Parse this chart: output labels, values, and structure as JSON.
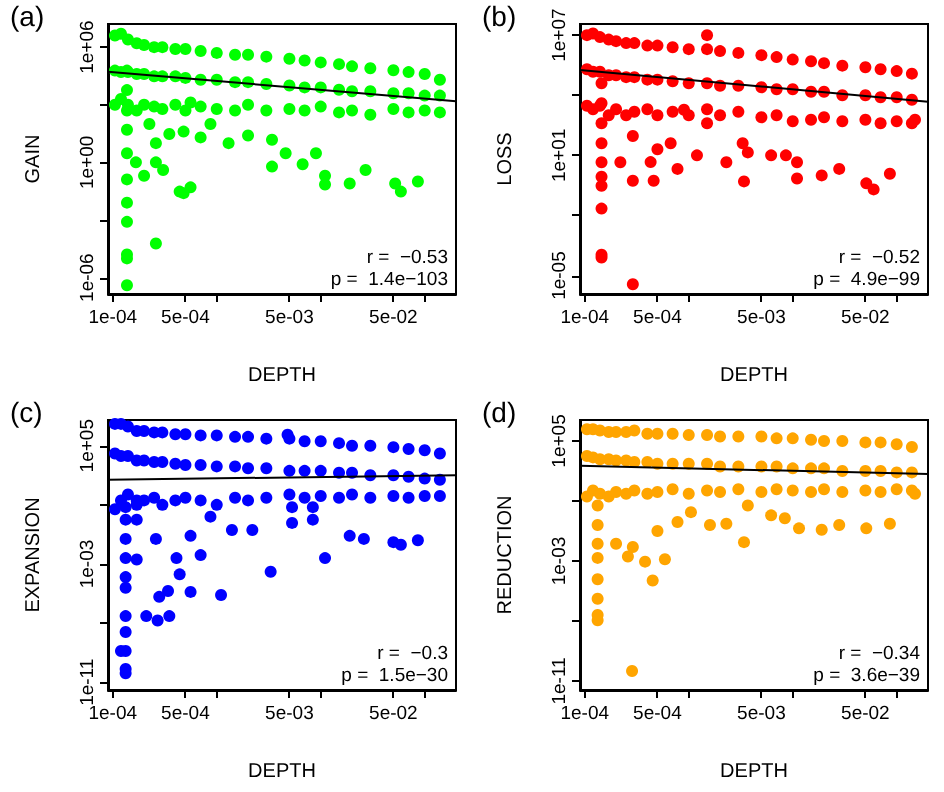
{
  "chart_data": [
    {
      "type": "scatter",
      "title": "(a)",
      "xlabel": "DEPTH",
      "ylabel": "GAIN",
      "log": "xy",
      "grid": false,
      "marker": "circle",
      "annotations": [
        "r =  −0.53",
        "p =  1.4e−103"
      ],
      "xlim": [
        9e-05,
        0.2
      ],
      "ylim": [
        1.4e-07,
        16000000.0
      ],
      "xticks": [
        {
          "value": 0.0001,
          "label": "1e-04"
        },
        {
          "value": 0.0005,
          "label": "5e-04"
        },
        {
          "value": 0.001,
          "label": null
        },
        {
          "value": 0.005,
          "label": "5e-03"
        },
        {
          "value": 0.01,
          "label": null
        },
        {
          "value": 0.05,
          "label": "5e-02"
        },
        {
          "value": 0.1,
          "label": null
        }
      ],
      "yticks": [
        {
          "value": 1e-06,
          "label": "1e-06"
        },
        {
          "value": 0.001,
          "label": null
        },
        {
          "value": 1,
          "label": "1e+00"
        },
        {
          "value": 1000,
          "label": null
        },
        {
          "value": 1000000.0,
          "label": "1e+06"
        }
      ],
      "series": [
        {
          "color": "#00ff00",
          "x": [
            0.000105,
            0.00012,
            0.00014,
            0.00017,
            0.0002,
            0.00025,
            0.0003,
            0.0004,
            0.0005,
            0.0007,
            0.001,
            0.0015,
            0.002,
            0.003,
            0.005,
            0.007,
            0.01,
            0.015,
            0.02,
            0.03,
            0.05,
            0.07,
            0.1,
            0.14,
            0.000105,
            0.00012,
            0.00014,
            0.00017,
            0.0002,
            0.00025,
            0.0003,
            0.0004,
            0.0005,
            0.0007,
            0.001,
            0.0015,
            0.002,
            0.003,
            0.005,
            0.007,
            0.01,
            0.015,
            0.02,
            0.03,
            0.05,
            0.07,
            0.1,
            0.14,
            0.000105,
            0.00012,
            0.00014,
            0.00017,
            0.0002,
            0.00025,
            0.0003,
            0.0004,
            0.0005,
            0.0007,
            0.001,
            0.0015,
            0.002,
            0.003,
            0.005,
            0.007,
            0.01,
            0.015,
            0.02,
            0.03,
            0.05,
            0.07,
            0.1,
            0.14,
            0.000137,
            0.000137,
            0.000137,
            0.000137,
            0.000137,
            0.000137,
            0.000137,
            0.000137,
            0.000137,
            0.000137,
            0.000137,
            0.00026,
            0.000225,
            0.00026,
            0.00035,
            0.00048,
            0.00056,
            0.0007,
            0.00087,
            0.0013,
            0.002,
            0.0034,
            0.0034,
            0.0046,
            0.0067,
            0.009,
            0.011,
            0.011,
            0.019,
            0.027,
            0.052,
            0.059,
            0.086,
            0.00044,
            0.00048,
            0.00056,
            0.0002,
            0.000167,
            0.00026,
            0.000305
          ],
          "values": [
            4000000.0,
            5000000.0,
            2500000.0,
            1600000.0,
            1300000.0,
            1000000.0,
            1000000.0,
            800000.0,
            800000.0,
            630000.0,
            500000.0,
            400000.0,
            400000.0,
            320000.0,
            250000.0,
            200000.0,
            160000.0,
            130000.0,
            100000.0,
            80000.0,
            63000.0,
            50000.0,
            40000.0,
            20000.0,
            60000.0,
            50000.0,
            50000.0,
            40000.0,
            40000.0,
            30000.0,
            30000.0,
            30000.0,
            25000.0,
            20000.0,
            20000.0,
            15000.0,
            15000.0,
            12000.0,
            10000.0,
            8000.0,
            8000.0,
            6000.0,
            5000.0,
            5000.0,
            4000.0,
            4000.0,
            3000.0,
            3000.0,
            1000.0,
            2000.0,
            1000.0,
            500.0,
            1000.0,
            800.0,
            600.0,
            1000.0,
            500.0,
            800.0,
            600.0,
            500.0,
            1000.0,
            500.0,
            600.0,
            500.0,
            800.0,
            400.0,
            500.0,
            300.0,
            600.0,
            400.0,
            500.0,
            400.0,
            60000.0,
            5800.0,
            500.0,
            50,
            3,
            0.13,
            0.008,
            0.0008,
            1.6e-05,
            1e-05,
            4e-07,
            6e-05,
            100.0,
            10,
            30,
            40,
            1300.0,
            20,
            100.0,
            10,
            25,
            15,
            0.6,
            3,
            0.8,
            3,
            0.2,
            0.07,
            0.08,
            0.4,
            0.08,
            0.03,
            0.1,
            0.03,
            0.025,
            0.05,
            0.2,
            1,
            1,
            0.4
          ]
        },
        {
          "type": "line",
          "color": "#000000",
          "marker": "none",
          "x": [
            9e-05,
            0.2
          ],
          "values": [
            52000.0,
            1500.0
          ]
        }
      ]
    },
    {
      "type": "scatter",
      "title": "(b)",
      "xlabel": "DEPTH",
      "ylabel": "LOSS",
      "log": "xy",
      "grid": false,
      "marker": "circle",
      "annotations": [
        "r =  −0.52",
        "p =  4.9e−99"
      ],
      "xlim": [
        9e-05,
        0.2
      ],
      "ylim": [
        1.2e-06,
        36000000.0
      ],
      "xticks": [
        {
          "value": 0.0001,
          "label": "1e-04"
        },
        {
          "value": 0.0005,
          "label": "5e-04"
        },
        {
          "value": 0.001,
          "label": null
        },
        {
          "value": 0.005,
          "label": "5e-03"
        },
        {
          "value": 0.01,
          "label": null
        },
        {
          "value": 0.05,
          "label": "5e-02"
        },
        {
          "value": 0.1,
          "label": null
        }
      ],
      "yticks": [
        {
          "value": 1e-05,
          "label": "1e-05"
        },
        {
          "value": 0.01,
          "label": null
        },
        {
          "value": 10,
          "label": "1e+01"
        },
        {
          "value": 10000,
          "label": null
        },
        {
          "value": 10000000.0,
          "label": "1e+07"
        }
      ],
      "series": [
        {
          "color": "#ff0000",
          "x": [
            0.000105,
            0.00012,
            0.00014,
            0.00017,
            0.0002,
            0.00025,
            0.0003,
            0.0004,
            0.0005,
            0.0007,
            0.001,
            0.0015,
            0.002,
            0.003,
            0.005,
            0.007,
            0.01,
            0.015,
            0.02,
            0.03,
            0.05,
            0.07,
            0.1,
            0.14,
            0.000105,
            0.00012,
            0.00014,
            0.00017,
            0.0002,
            0.00025,
            0.0003,
            0.0004,
            0.0005,
            0.0007,
            0.001,
            0.0015,
            0.002,
            0.003,
            0.005,
            0.007,
            0.01,
            0.015,
            0.02,
            0.03,
            0.05,
            0.07,
            0.1,
            0.14,
            0.000105,
            0.00012,
            0.00014,
            0.00017,
            0.0002,
            0.00025,
            0.0003,
            0.0004,
            0.0005,
            0.0007,
            0.001,
            0.0015,
            0.002,
            0.003,
            0.005,
            0.007,
            0.01,
            0.015,
            0.02,
            0.03,
            0.05,
            0.07,
            0.1,
            0.14,
            0.000145,
            0.000145,
            0.000145,
            0.000145,
            0.000145,
            0.000145,
            0.000145,
            0.000145,
            0.000145,
            0.000145,
            0.00029,
            0.00022,
            0.00029,
            0.00029,
            0.00043,
            0.00046,
            0.0005,
            0.00067,
            0.00078,
            0.0009,
            0.0012,
            0.0015,
            0.0015,
            0.0023,
            0.0033,
            0.0037,
            0.0034,
            0.0062,
            0.0086,
            0.011,
            0.011,
            0.019,
            0.028,
            0.051,
            0.06,
            0.086,
            0.15
          ],
          "values": [
            10000000.0,
            12000000.0,
            8000000.0,
            6000000.0,
            5000000.0,
            4000000.0,
            4000000.0,
            3000000.0,
            3000000.0,
            2500000.0,
            2000000.0,
            2000000.0,
            1600000.0,
            1300000.0,
            1000000.0,
            800000.0,
            600000.0,
            500000.0,
            400000.0,
            300000.0,
            250000.0,
            200000.0,
            160000.0,
            120000.0,
            200000.0,
            150000.0,
            150000.0,
            100000.0,
            100000.0,
            80000.0,
            80000.0,
            60000.0,
            60000.0,
            50000.0,
            40000.0,
            40000.0,
            30000.0,
            30000.0,
            25000.0,
            20000.0,
            20000.0,
            15000.0,
            15000.0,
            10000.0,
            10000.0,
            8000.0,
            8000.0,
            6000.0,
            3000.0,
            2000.0,
            3000.0,
            1000.0,
            2000.0,
            1000.0,
            1500.0,
            2000.0,
            1000.0,
            1500.0,
            1000.0,
            2000.0,
            1000.0,
            1500.0,
            800.0,
            1000.0,
            500.0,
            600.0,
            800.0,
            500.0,
            600.0,
            400.0,
            500.0,
            400.0,
            40000.0,
            4000.0,
            400.0,
            40,
            4.5,
            0.3,
            0.022,
            0.00011,
            8e-05,
            0.85,
            3.7e-06,
            4.5,
            93,
            0.54,
            4.6,
            0.54,
            20,
            40,
            2.1,
            1900.0,
            10,
            400.0,
            10000000.0,
            4.5,
            40,
            14,
            0.5,
            10,
            10,
            4.5,
            0.7,
            1,
            2.1,
            0.4,
            0.2,
            1.2,
            600.0
          ]
        },
        {
          "type": "line",
          "color": "#000000",
          "marker": "none",
          "x": [
            9e-05,
            0.2
          ],
          "values": [
            180000.0,
            4800.0
          ]
        }
      ]
    },
    {
      "type": "scatter",
      "title": "(c)",
      "xlabel": "DEPTH",
      "ylabel": "EXPANSION",
      "log": "xy",
      "grid": false,
      "marker": "circle",
      "annotations": [
        "r =  −0.3",
        "p =  1.5e−30"
      ],
      "xlim": [
        9e-05,
        0.2
      ],
      "ylim": [
        3e-12,
        5500000.0
      ],
      "xticks": [
        {
          "value": 0.0001,
          "label": "1e-04"
        },
        {
          "value": 0.0005,
          "label": "5e-04"
        },
        {
          "value": 0.001,
          "label": null
        },
        {
          "value": 0.005,
          "label": "5e-03"
        },
        {
          "value": 0.01,
          "label": null
        },
        {
          "value": 0.05,
          "label": "5e-02"
        },
        {
          "value": 0.1,
          "label": null
        }
      ],
      "yticks": [
        {
          "value": 1e-11,
          "label": "1e-11"
        },
        {
          "value": 1e-07,
          "label": null
        },
        {
          "value": 0.001,
          "label": "1e-03"
        },
        {
          "value": 10,
          "label": null
        },
        {
          "value": 100000.0,
          "label": "1e+05"
        }
      ],
      "series": [
        {
          "color": "#0000ff",
          "x": [
            0.000105,
            0.00012,
            0.00014,
            0.00017,
            0.0002,
            0.00025,
            0.0003,
            0.0004,
            0.0005,
            0.0007,
            0.001,
            0.0015,
            0.002,
            0.003,
            0.005,
            0.007,
            0.01,
            0.015,
            0.02,
            0.03,
            0.05,
            0.07,
            0.1,
            0.14,
            0.000105,
            0.00012,
            0.00014,
            0.00017,
            0.0002,
            0.00025,
            0.0003,
            0.0004,
            0.0005,
            0.0007,
            0.001,
            0.0015,
            0.002,
            0.003,
            0.005,
            0.007,
            0.01,
            0.015,
            0.02,
            0.03,
            0.05,
            0.07,
            0.1,
            0.14,
            0.000105,
            0.00012,
            0.00014,
            0.00017,
            0.0002,
            0.00025,
            0.0003,
            0.0004,
            0.0005,
            0.0007,
            0.001,
            0.0015,
            0.002,
            0.003,
            0.005,
            0.007,
            0.01,
            0.015,
            0.02,
            0.03,
            0.05,
            0.07,
            0.1,
            0.14,
            0.000133,
            0.000133,
            0.000133,
            0.000133,
            0.000133,
            0.000133,
            0.000133,
            0.000133,
            0.000133,
            0.000133,
            0.000133,
            0.00012,
            0.00017,
            0.00017,
            0.00017,
            0.00021,
            0.00027,
            0.00035,
            0.00026,
            0.00028,
            0.00034,
            0.00041,
            0.00044,
            0.00056,
            0.00056,
            0.0007,
            0.0011,
            0.00087,
            0.0014,
            0.0022,
            0.0033,
            0.0053,
            0.0084,
            0.011,
            0.019,
            0.026,
            0.05,
            0.059,
            0.086,
            0.0084,
            0.0053,
            0.0048
          ],
          "values": [
            3000000.0,
            3000000.0,
            2000000.0,
            1000000.0,
            1000000.0,
            800000.0,
            800000.0,
            600000.0,
            600000.0,
            500000.0,
            500000.0,
            400000.0,
            400000.0,
            300000.0,
            300000.0,
            200000.0,
            200000.0,
            150000.0,
            100000.0,
            100000.0,
            80000.0,
            60000.0,
            50000.0,
            30000.0,
            30000.0,
            20000.0,
            20000.0,
            10000.0,
            10000.0,
            8000.0,
            8000.0,
            6000.0,
            5000.0,
            5000.0,
            4000.0,
            4000.0,
            3000.0,
            3000.0,
            2000.0,
            2000.0,
            2000.0,
            1500.0,
            1500.0,
            1000.0,
            1000.0,
            800.0,
            600.0,
            500.0,
            5,
            20,
            50,
            10,
            20,
            30,
            10,
            20,
            30,
            20,
            10,
            30,
            20,
            30,
            50,
            30,
            40,
            30,
            50,
            30,
            40,
            30,
            40,
            40,
            7,
            1,
            0.05,
            0.0025,
            0.00013,
            2.5e-05,
            3e-07,
            2.5e-08,
            1.3e-09,
            8e-11,
            4e-11,
            1.3e-09,
            20,
            1,
            0.002,
            3e-07,
            1.5e-07,
            3e-07,
            0.05,
            6e-06,
            1.5e-05,
            0.0025,
            0.0002,
            1.3e-05,
            0.08,
            0.004,
            8e-06,
            1.6,
            0.2,
            0.2,
            0.0003,
            7,
            7,
            0.0025,
            0.08,
            0.05,
            0.03,
            0.02,
            0.04,
            1,
            0.6,
            550000.0
          ]
        },
        {
          "type": "line",
          "color": "#000000",
          "marker": "none",
          "x": [
            9e-05,
            0.2
          ],
          "values": [
            500,
            1000
          ]
        }
      ]
    },
    {
      "type": "scatter",
      "title": "(d)",
      "xlabel": "DEPTH",
      "ylabel": "REDUCTION",
      "log": "xy",
      "grid": false,
      "marker": "circle",
      "annotations": [
        "r =  −0.34",
        "p =  3.6e−39"
      ],
      "xlim": [
        9e-05,
        0.2
      ],
      "ylim": [
        2.5e-12,
        2500000.0
      ],
      "xticks": [
        {
          "value": 0.0001,
          "label": "1e-04"
        },
        {
          "value": 0.0005,
          "label": "5e-04"
        },
        {
          "value": 0.001,
          "label": null
        },
        {
          "value": 0.005,
          "label": "5e-03"
        },
        {
          "value": 0.01,
          "label": null
        },
        {
          "value": 0.05,
          "label": "5e-02"
        },
        {
          "value": 0.1,
          "label": null
        }
      ],
      "yticks": [
        {
          "value": 1e-11,
          "label": "1e-11"
        },
        {
          "value": 1e-07,
          "label": null
        },
        {
          "value": 0.001,
          "label": "1e-03"
        },
        {
          "value": 10,
          "label": null
        },
        {
          "value": 100000.0,
          "label": "1e+05"
        }
      ],
      "series": [
        {
          "color": "#ffa500",
          "x": [
            0.000105,
            0.00012,
            0.00014,
            0.00017,
            0.0002,
            0.00025,
            0.0003,
            0.0004,
            0.0005,
            0.0007,
            0.001,
            0.0015,
            0.002,
            0.003,
            0.005,
            0.007,
            0.01,
            0.015,
            0.02,
            0.03,
            0.05,
            0.07,
            0.1,
            0.14,
            0.000105,
            0.00012,
            0.00014,
            0.00017,
            0.0002,
            0.00025,
            0.0003,
            0.0004,
            0.0005,
            0.0007,
            0.001,
            0.0015,
            0.002,
            0.003,
            0.005,
            0.007,
            0.01,
            0.015,
            0.02,
            0.03,
            0.05,
            0.07,
            0.1,
            0.14,
            0.000105,
            0.00012,
            0.00014,
            0.00017,
            0.0002,
            0.00025,
            0.0003,
            0.0004,
            0.0005,
            0.0007,
            0.001,
            0.0015,
            0.002,
            0.003,
            0.005,
            0.007,
            0.01,
            0.015,
            0.02,
            0.03,
            0.05,
            0.07,
            0.1,
            0.14,
            0.000133,
            0.000133,
            0.000133,
            0.000133,
            0.000133,
            0.000133,
            0.000133,
            0.000133,
            0.000285,
            0.0002,
            0.00026,
            0.00029,
            0.00038,
            0.00045,
            0.00059,
            0.0005,
            0.00078,
            0.00105,
            0.0016,
            0.0023,
            0.0034,
            0.0037,
            0.0062,
            0.0084,
            0.0115,
            0.019,
            0.028,
            0.051,
            0.086,
            0.15
          ],
          "values": [
            600000.0,
            600000.0,
            500000.0,
            400000.0,
            400000.0,
            400000.0,
            500000.0,
            300000.0,
            300000.0,
            300000.0,
            250000.0,
            250000.0,
            200000.0,
            200000.0,
            200000.0,
            150000.0,
            150000.0,
            120000.0,
            100000.0,
            100000.0,
            80000.0,
            80000.0,
            60000.0,
            40000.0,
            10000.0,
            8000.0,
            6000.0,
            6000.0,
            5000.0,
            5000.0,
            4000.0,
            4000.0,
            3000.0,
            3000.0,
            3000.0,
            3000.0,
            2000.0,
            2000.0,
            2000.0,
            2000.0,
            1500.0,
            1500.0,
            1500.0,
            1000.0,
            1000.0,
            1000.0,
            800.0,
            800.0,
            20,
            50,
            30,
            20,
            40,
            30,
            50,
            30,
            40,
            60,
            30,
            50,
            40,
            60,
            40,
            60,
            50,
            40,
            60,
            40,
            50,
            40,
            60,
            50,
            5,
            0.25,
            0.014,
            0.0016,
            6e-05,
            3e-06,
            2.5e-07,
            1.1e-07,
            4.6e-11,
            0.014,
            0.002,
            0.0085,
            0.0009,
            5e-05,
            0.0013,
            0.1,
            0.4,
            1.8,
            0.25,
            0.3,
            0.018,
            5,
            1.1,
            0.7,
            0.15,
            0.12,
            0.25,
            0.15,
            0.3,
            30
          ]
        },
        {
          "type": "line",
          "color": "#000000",
          "marker": "none",
          "x": [
            9e-05,
            0.2
          ],
          "values": [
            2200.0,
            630
          ]
        }
      ]
    }
  ]
}
